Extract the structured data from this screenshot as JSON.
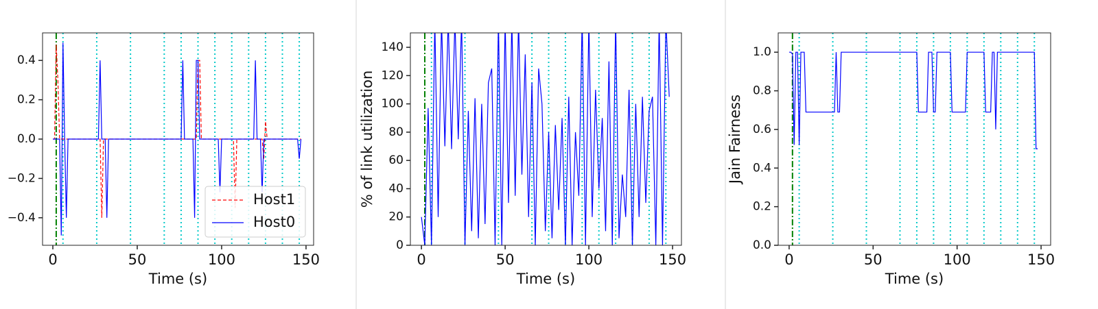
{
  "chart_data": [
    {
      "type": "line",
      "xlabel": "Time (s)",
      "xlim": [
        -6.1,
        154.5
      ],
      "ylim": [
        -0.54,
        0.54
      ],
      "xticks": [
        0,
        50,
        100,
        150
      ],
      "yticks": [
        {
          "value": -0.4,
          "label": "−0.4"
        },
        {
          "value": -0.2,
          "label": "−0.2"
        },
        {
          "value": 0,
          "label": "0.0"
        },
        0.2,
        0.4
      ],
      "vlines": [
        {
          "x": 2,
          "color": "#008000",
          "dash": "9 3 2 3"
        },
        {
          "x": 6,
          "color": "#00c8c8",
          "dash": "2 4"
        },
        {
          "x": 26,
          "color": "#00c8c8",
          "dash": "2 4"
        },
        {
          "x": 46,
          "color": "#00c8c8",
          "dash": "2 4"
        },
        {
          "x": 66,
          "color": "#00c8c8",
          "dash": "2 4"
        },
        {
          "x": 76,
          "color": "#00c8c8",
          "dash": "2 4"
        },
        {
          "x": 86,
          "color": "#00c8c8",
          "dash": "2 4"
        },
        {
          "x": 96,
          "color": "#00c8c8",
          "dash": "2 4"
        },
        {
          "x": 106,
          "color": "#00c8c8",
          "dash": "2 4"
        },
        {
          "x": 116,
          "color": "#00c8c8",
          "dash": "2 4"
        },
        {
          "x": 126,
          "color": "#00c8c8",
          "dash": "2 4"
        },
        {
          "x": 136,
          "color": "#00c8c8",
          "dash": "2 4"
        },
        {
          "x": 146,
          "color": "#00c8c8",
          "dash": "2 4"
        }
      ],
      "legend": "lower right",
      "series": [
        {
          "name": "Host1",
          "color": "#ff0000",
          "dash": "5 3",
          "x": [
            0,
            1,
            2,
            3,
            4,
            28,
            29,
            30,
            85,
            86,
            87,
            88,
            107,
            108,
            109,
            124,
            125,
            126,
            127,
            147
          ],
          "values": [
            0,
            0,
            0.48,
            0.3,
            0,
            0,
            -0.4,
            0,
            0,
            0.4,
            0.4,
            0,
            0,
            -0.35,
            0,
            0,
            -0.1,
            0.09,
            0,
            0
          ]
        },
        {
          "name": "Host0",
          "color": "#0000ff",
          "dash": "",
          "x": [
            0,
            3,
            4,
            5,
            6,
            7,
            8,
            9,
            27,
            28,
            29,
            31,
            32,
            33,
            76,
            77,
            78,
            83,
            84,
            85,
            86,
            87,
            98,
            99,
            100,
            119,
            120,
            121,
            123,
            124,
            125,
            145,
            146,
            147
          ],
          "values": [
            0,
            0,
            0,
            -0.49,
            0.49,
            0,
            -0.4,
            0,
            0,
            0.4,
            0,
            0,
            -0.4,
            0,
            0,
            0.4,
            0,
            0,
            -0.4,
            0.4,
            0.4,
            0,
            0,
            -0.27,
            0,
            0,
            0.4,
            0,
            0,
            -0.27,
            0,
            0,
            -0.1,
            0
          ]
        }
      ]
    },
    {
      "type": "line",
      "xlabel": "Time (s)",
      "ylabel": "% of link utilization",
      "xlim": [
        -6.6,
        155.3
      ],
      "ylim": [
        0,
        150.2
      ],
      "xticks": [
        0,
        50,
        100,
        150
      ],
      "yticks": [
        0,
        20,
        40,
        60,
        80,
        100,
        120,
        140
      ],
      "vlines": [
        {
          "x": 2,
          "color": "#008000",
          "dash": "9 3 2 3"
        },
        {
          "x": 6,
          "color": "#00c8c8",
          "dash": "2 4"
        },
        {
          "x": 26,
          "color": "#00c8c8",
          "dash": "2 4"
        },
        {
          "x": 46,
          "color": "#00c8c8",
          "dash": "2 4"
        },
        {
          "x": 66,
          "color": "#00c8c8",
          "dash": "2 4"
        },
        {
          "x": 76,
          "color": "#00c8c8",
          "dash": "2 4"
        },
        {
          "x": 86,
          "color": "#00c8c8",
          "dash": "2 4"
        },
        {
          "x": 96,
          "color": "#00c8c8",
          "dash": "2 4"
        },
        {
          "x": 106,
          "color": "#00c8c8",
          "dash": "2 4"
        },
        {
          "x": 116,
          "color": "#00c8c8",
          "dash": "2 4"
        },
        {
          "x": 126,
          "color": "#00c8c8",
          "dash": "2 4"
        },
        {
          "x": 136,
          "color": "#00c8c8",
          "dash": "2 4"
        },
        {
          "x": 146,
          "color": "#00c8c8",
          "dash": "2 4"
        }
      ],
      "series": [
        {
          "color": "#0000ff",
          "dash": "",
          "x": [
            0,
            2,
            4,
            6,
            8,
            10,
            12,
            14,
            16,
            18,
            20,
            22,
            24,
            26,
            28,
            30,
            32,
            34,
            36,
            38,
            40,
            42,
            44,
            46,
            48,
            50,
            52,
            54,
            56,
            58,
            60,
            62,
            64,
            66,
            68,
            70,
            72,
            74,
            76,
            78,
            80,
            82,
            84,
            86,
            88,
            90,
            92,
            94,
            96,
            98,
            100,
            102,
            104,
            106,
            108,
            110,
            112,
            114,
            116,
            118,
            120,
            122,
            124,
            126,
            128,
            130,
            132,
            134,
            136,
            138,
            140,
            142,
            144,
            146,
            148
          ],
          "values": [
            20,
            0,
            97,
            0,
            160,
            20,
            160,
            70,
            160,
            68,
            160,
            75,
            160,
            0,
            95,
            10,
            104,
            5,
            100,
            15,
            115,
            125,
            0,
            160,
            0,
            160,
            30,
            160,
            35,
            160,
            50,
            135,
            20,
            115,
            0,
            125,
            100,
            10,
            80,
            5,
            85,
            25,
            90,
            0,
            105,
            0,
            80,
            35,
            160,
            0,
            160,
            20,
            110,
            40,
            90,
            10,
            130,
            0,
            160,
            5,
            50,
            20,
            110,
            0,
            100,
            20,
            105,
            30,
            95,
            105,
            0,
            160,
            0,
            160,
            105
          ]
        }
      ]
    },
    {
      "type": "line",
      "xlabel": "Time (s)",
      "ylabel": "Jain Fairness",
      "xlim": [
        -6.5,
        155.7
      ],
      "ylim": [
        0,
        1.1
      ],
      "xticks": [
        0,
        50,
        100,
        150
      ],
      "yticks": [
        {
          "value": 0,
          "label": "0.0"
        },
        0.2,
        0.4,
        0.6,
        0.8,
        {
          "value": 1,
          "label": "1.0"
        }
      ],
      "vlines": [
        {
          "x": 2,
          "color": "#008000",
          "dash": "9 3 2 3"
        },
        {
          "x": 6,
          "color": "#00c8c8",
          "dash": "2 4"
        },
        {
          "x": 26,
          "color": "#00c8c8",
          "dash": "2 4"
        },
        {
          "x": 46,
          "color": "#00c8c8",
          "dash": "2 4"
        },
        {
          "x": 66,
          "color": "#00c8c8",
          "dash": "2 4"
        },
        {
          "x": 76,
          "color": "#00c8c8",
          "dash": "2 4"
        },
        {
          "x": 86,
          "color": "#00c8c8",
          "dash": "2 4"
        },
        {
          "x": 96,
          "color": "#00c8c8",
          "dash": "2 4"
        },
        {
          "x": 106,
          "color": "#00c8c8",
          "dash": "2 4"
        },
        {
          "x": 116,
          "color": "#00c8c8",
          "dash": "2 4"
        },
        {
          "x": 126,
          "color": "#00c8c8",
          "dash": "2 4"
        },
        {
          "x": 136,
          "color": "#00c8c8",
          "dash": "2 4"
        },
        {
          "x": 146,
          "color": "#00c8c8",
          "dash": "2 4"
        }
      ],
      "series": [
        {
          "color": "#0000ff",
          "dash": "",
          "x": [
            0,
            1,
            2,
            3,
            4,
            5,
            6,
            7,
            9,
            10,
            27,
            28,
            29,
            30,
            31,
            76,
            77,
            82,
            83,
            85,
            86,
            87,
            88,
            96,
            97,
            105,
            106,
            116,
            117,
            120,
            121,
            122,
            123,
            124,
            146,
            147,
            148
          ],
          "values": [
            1,
            1,
            0.99,
            0.52,
            1,
            1,
            0.52,
            1,
            1,
            0.69,
            0.69,
            1,
            0.69,
            0.69,
            1,
            1,
            0.69,
            0.69,
            1,
            1,
            0.69,
            0.69,
            1,
            1,
            0.69,
            0.69,
            1,
            1,
            0.69,
            0.69,
            1,
            1,
            0.6,
            1,
            1,
            0.5,
            0.5
          ]
        }
      ]
    }
  ]
}
